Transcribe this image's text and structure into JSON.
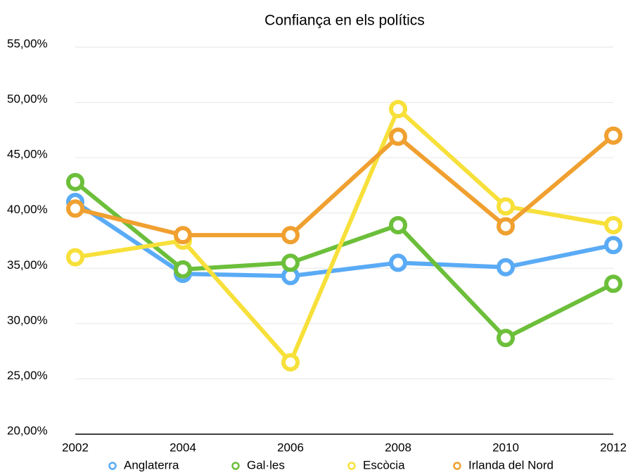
{
  "chart_data": {
    "type": "line",
    "title": "Confiança en els polítics",
    "x": [
      2002,
      2004,
      2006,
      2008,
      2010,
      2012
    ],
    "xlim": [
      2002,
      2012
    ],
    "xticks": [
      2002,
      2004,
      2006,
      2008,
      2010,
      2012
    ],
    "ylim": [
      20,
      55
    ],
    "yticks": [
      {
        "value": 20,
        "label": "20,00%"
      },
      {
        "value": 25,
        "label": "25,00%"
      },
      {
        "value": 30,
        "label": "30,00%"
      },
      {
        "value": 35,
        "label": "35,00%"
      },
      {
        "value": 40,
        "label": "40,00%"
      },
      {
        "value": 45,
        "label": "45,00%"
      },
      {
        "value": 50,
        "label": "50,00%"
      },
      {
        "value": 55,
        "label": "55,00%"
      }
    ],
    "grid": true,
    "legend": "bottom",
    "series": [
      {
        "name": "Anglaterra",
        "color": "#5aabf5",
        "values": [
          41.0,
          34.5,
          34.3,
          35.5,
          35.1,
          37.1
        ]
      },
      {
        "name": "Gal·les",
        "color": "#6cbf3a",
        "values": [
          42.8,
          34.9,
          35.5,
          38.9,
          28.7,
          33.6
        ]
      },
      {
        "name": "Escòcia",
        "color": "#f7e03a",
        "values": [
          36.0,
          37.5,
          26.5,
          49.4,
          40.6,
          38.9
        ]
      },
      {
        "name": "Irlanda del Nord",
        "color": "#f0a030",
        "values": [
          40.4,
          38.0,
          38.0,
          46.9,
          38.8,
          47.0
        ]
      }
    ]
  }
}
